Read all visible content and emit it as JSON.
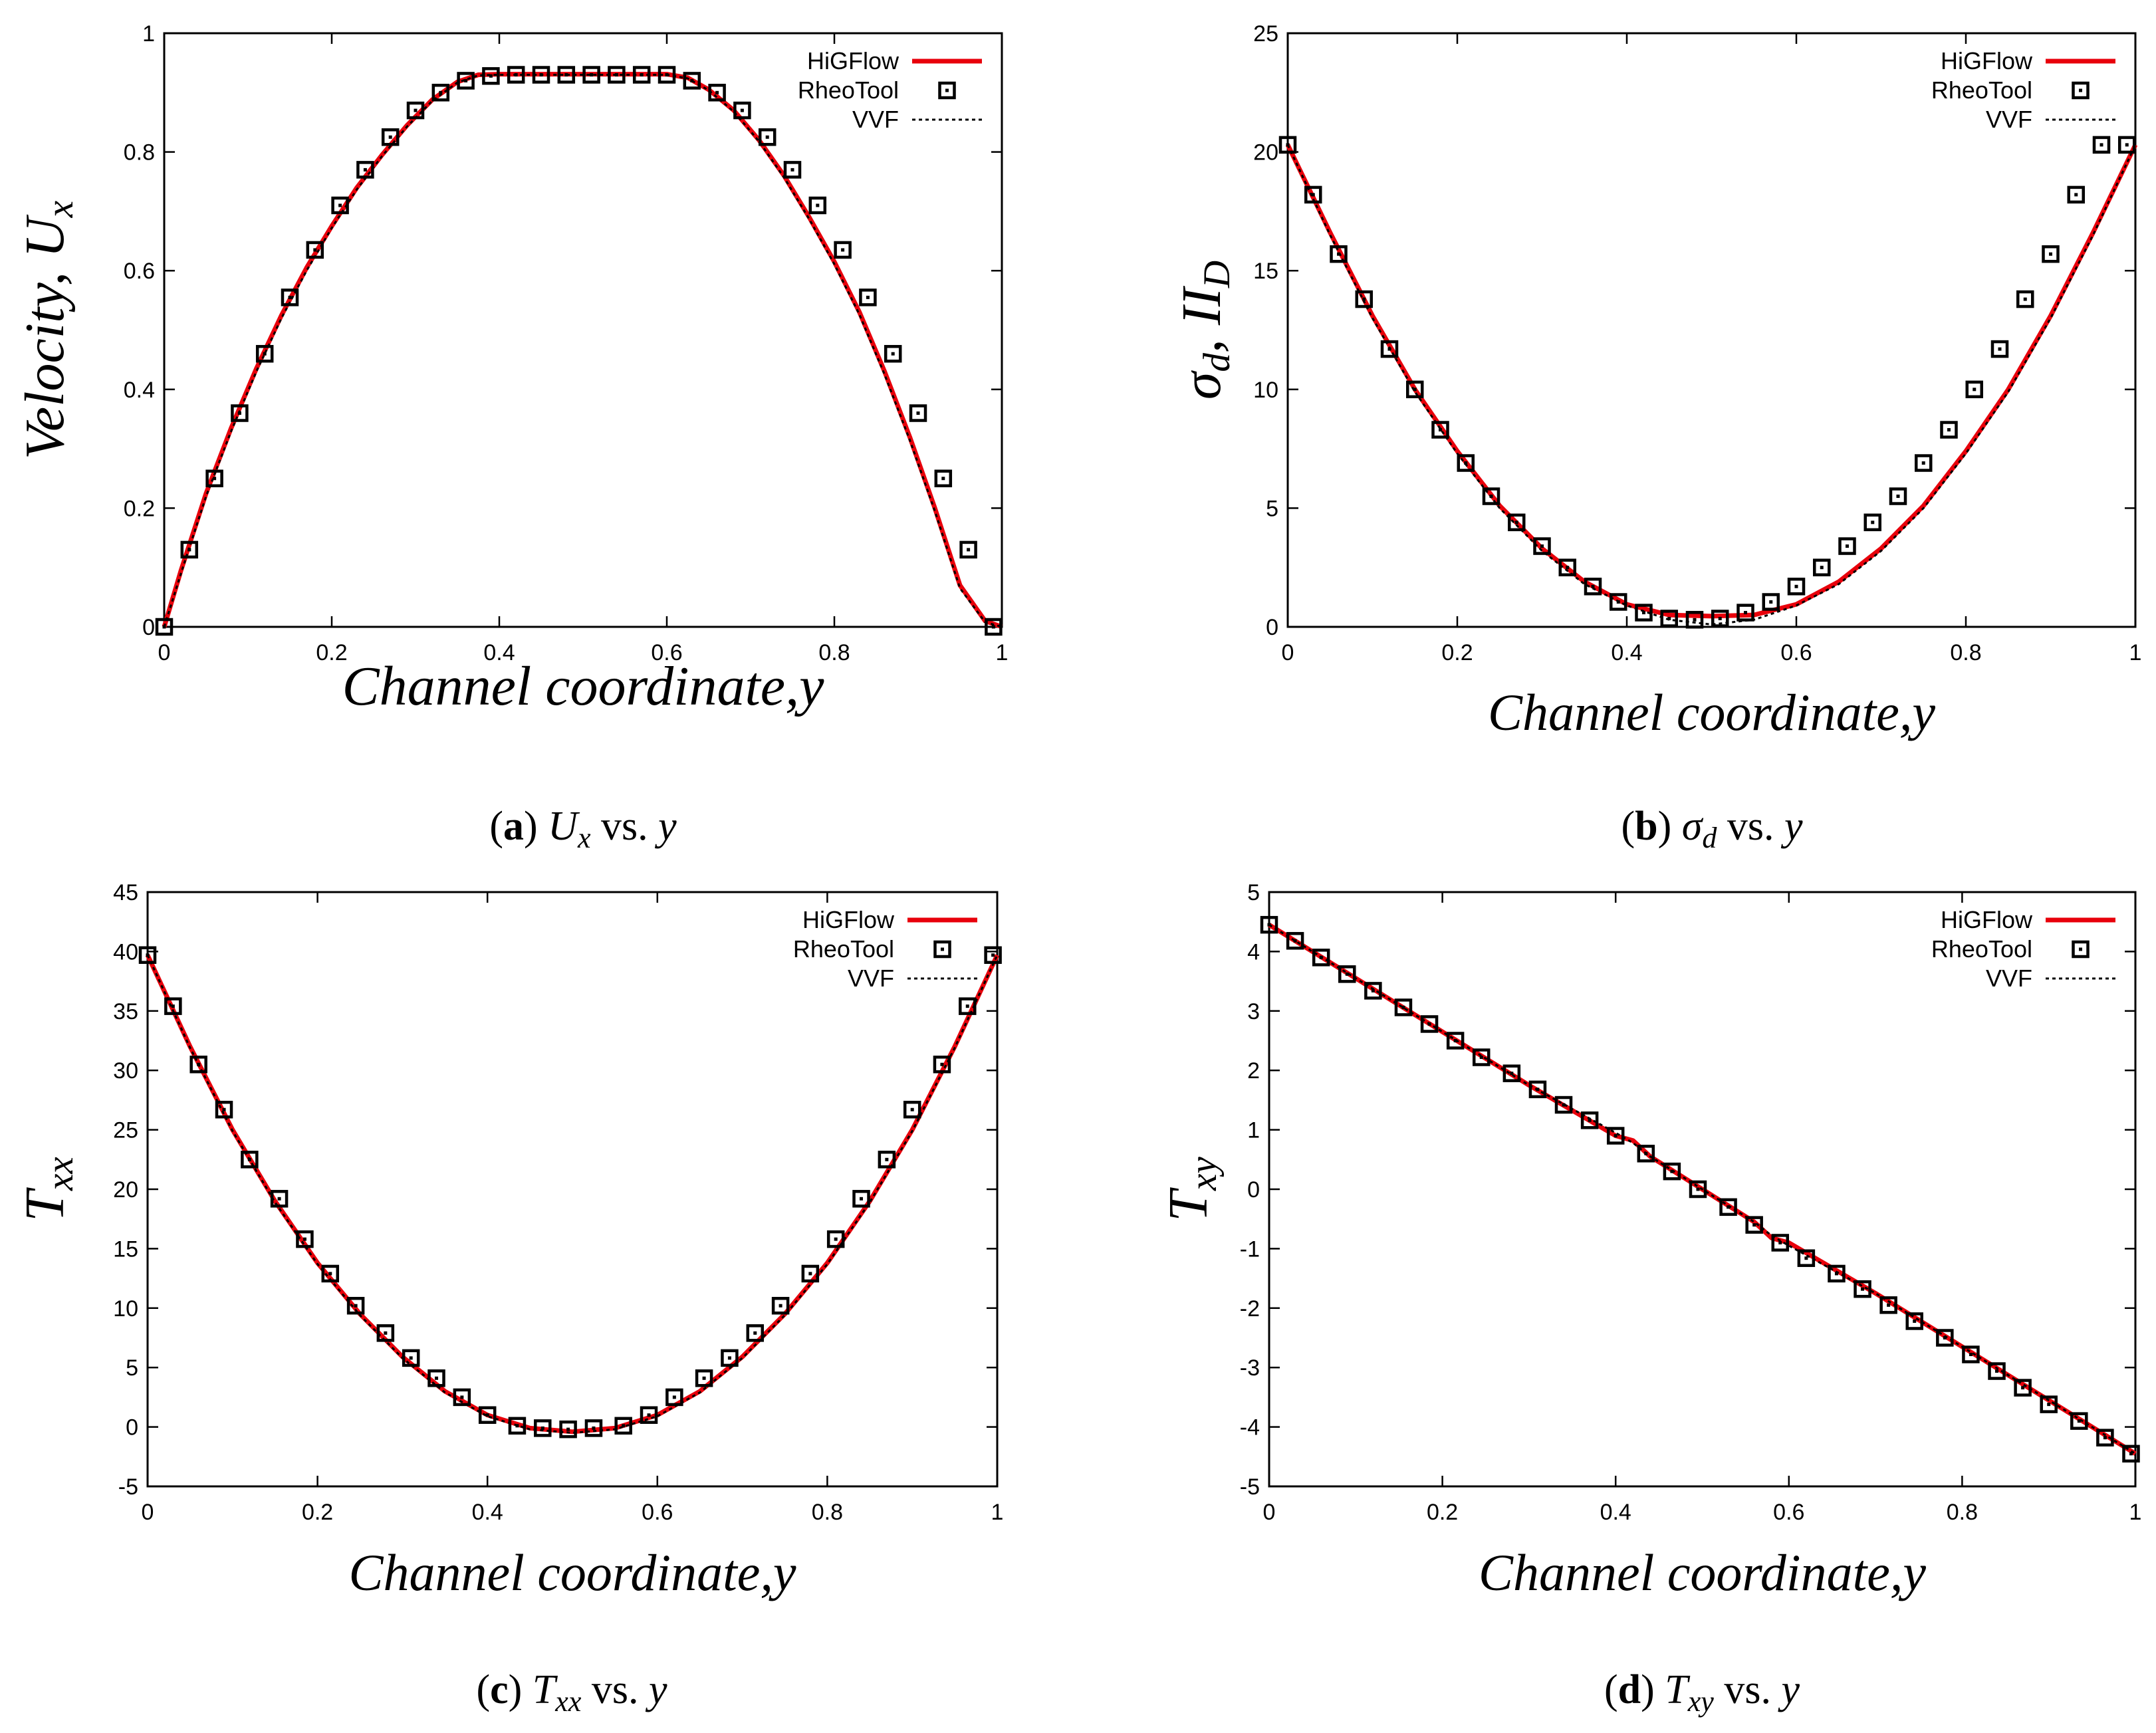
{
  "colors": {
    "higflow": "#e8000b",
    "rheotool": "#000000",
    "vvf": "#000000",
    "axis": "#000000"
  },
  "chart_data": [
    {
      "id": "a",
      "type": "line",
      "xlabel": "Channel coordinate,y",
      "ylabel": "Velocity, U",
      "ylabel_sub": "x",
      "xlim": [
        0,
        1
      ],
      "ylim": [
        0,
        1
      ],
      "xticks": [
        "0",
        "0.2",
        "0.4",
        "0.6",
        "0.8",
        "1"
      ],
      "xtick_values": [
        0,
        0.2,
        0.4,
        0.6,
        0.8,
        1
      ],
      "yticks": [
        "0",
        "0.2",
        "0.4",
        "0.6",
        "0.8",
        "1"
      ],
      "ytick_values": [
        0,
        0.2,
        0.4,
        0.6,
        0.8,
        1
      ],
      "legend": {
        "position": "top-right",
        "entries": [
          "HiGFlow",
          "RheoTool",
          "VVF"
        ]
      },
      "caption": {
        "label": "(a)",
        "var": "U",
        "var_sub": "x",
        "vs": "vs.",
        "y": "y"
      },
      "series": [
        {
          "name": "HiGFlow",
          "style": "solid-red",
          "x": [
            0,
            0.02,
            0.05,
            0.08,
            0.11,
            0.14,
            0.17,
            0.2,
            0.23,
            0.26,
            0.29,
            0.32,
            0.35,
            0.375,
            0.4,
            0.45,
            0.5,
            0.55,
            0.6,
            0.625,
            0.65,
            0.68,
            0.71,
            0.74,
            0.77,
            0.8,
            0.83,
            0.86,
            0.89,
            0.92,
            0.95,
            0.98,
            1
          ],
          "y": [
            0,
            0.095,
            0.225,
            0.335,
            0.435,
            0.525,
            0.605,
            0.675,
            0.74,
            0.795,
            0.845,
            0.888,
            0.918,
            0.93,
            0.931,
            0.931,
            0.931,
            0.931,
            0.931,
            0.925,
            0.905,
            0.87,
            0.82,
            0.76,
            0.69,
            0.615,
            0.53,
            0.43,
            0.32,
            0.2,
            0.07,
            0.01,
            0
          ]
        },
        {
          "name": "RheoTool",
          "style": "open-square",
          "x": [
            0,
            0.03,
            0.06,
            0.09,
            0.12,
            0.15,
            0.18,
            0.21,
            0.24,
            0.27,
            0.3,
            0.33,
            0.36,
            0.39,
            0.42,
            0.45,
            0.48,
            0.51,
            0.54,
            0.57,
            0.6,
            0.63,
            0.66,
            0.69,
            0.72,
            0.75,
            0.78,
            0.81,
            0.84,
            0.87,
            0.9,
            0.93,
            0.96,
            0.99
          ],
          "y": [
            0,
            0.13,
            0.25,
            0.36,
            0.46,
            0.555,
            0.635,
            0.71,
            0.77,
            0.825,
            0.87,
            0.9,
            0.92,
            0.928,
            0.93,
            0.93,
            0.93,
            0.93,
            0.93,
            0.93,
            0.93,
            0.92,
            0.9,
            0.87,
            0.825,
            0.77,
            0.71,
            0.635,
            0.555,
            0.46,
            0.36,
            0.25,
            0.13,
            0
          ]
        },
        {
          "name": "VVF",
          "style": "dotted-black",
          "x": [
            0,
            0.02,
            0.05,
            0.08,
            0.11,
            0.14,
            0.17,
            0.2,
            0.23,
            0.26,
            0.29,
            0.32,
            0.35,
            0.375,
            0.4,
            0.5,
            0.6,
            0.625,
            0.65,
            0.68,
            0.71,
            0.74,
            0.77,
            0.8,
            0.83,
            0.86,
            0.89,
            0.92,
            0.95,
            0.98,
            1
          ],
          "y": [
            0,
            0.09,
            0.22,
            0.33,
            0.43,
            0.52,
            0.6,
            0.672,
            0.737,
            0.793,
            0.843,
            0.886,
            0.917,
            0.929,
            0.93,
            0.93,
            0.93,
            0.924,
            0.904,
            0.868,
            0.818,
            0.757,
            0.687,
            0.611,
            0.526,
            0.425,
            0.315,
            0.195,
            0.065,
            0.008,
            0
          ]
        }
      ]
    },
    {
      "id": "b",
      "type": "line",
      "xlabel": "Channel coordinate,y",
      "ylabel": "σ",
      "ylabel_sub": "d",
      "ylabel_extra": ", II",
      "ylabel_extra_sub": "D",
      "xlim": [
        0,
        1
      ],
      "ylim": [
        0,
        25
      ],
      "xticks": [
        "0",
        "0.2",
        "0.4",
        "0.6",
        "0.8",
        "1"
      ],
      "xtick_values": [
        0,
        0.2,
        0.4,
        0.6,
        0.8,
        1
      ],
      "yticks": [
        "0",
        "5",
        "10",
        "15",
        "20",
        "25"
      ],
      "ytick_values": [
        0,
        5,
        10,
        15,
        20,
        25
      ],
      "legend": {
        "position": "top-right",
        "entries": [
          "HiGFlow",
          "RheoTool",
          "VVF"
        ]
      },
      "caption": {
        "label": "(b)",
        "var": "σ",
        "var_sub": "d",
        "vs": "vs.",
        "y": "y"
      },
      "series": [
        {
          "name": "HiGFlow",
          "style": "solid-red",
          "x": [
            0,
            0.05,
            0.1,
            0.15,
            0.2,
            0.25,
            0.3,
            0.35,
            0.4,
            0.45,
            0.5,
            0.55,
            0.6,
            0.65,
            0.7,
            0.75,
            0.8,
            0.85,
            0.9,
            0.95,
            1
          ],
          "y": [
            20.3,
            16.6,
            13.1,
            10.0,
            7.4,
            5.1,
            3.3,
            1.9,
            0.95,
            0.5,
            0.45,
            0.5,
            0.95,
            1.9,
            3.3,
            5.1,
            7.4,
            10.0,
            13.1,
            16.6,
            20.3
          ]
        },
        {
          "name": "RheoTool",
          "style": "open-square",
          "x": [
            0,
            0.03,
            0.06,
            0.09,
            0.12,
            0.15,
            0.18,
            0.21,
            0.24,
            0.27,
            0.3,
            0.33,
            0.36,
            0.39,
            0.42,
            0.45,
            0.48,
            0.51,
            0.54,
            0.57,
            0.6,
            0.63,
            0.66,
            0.69,
            0.72,
            0.75,
            0.78,
            0.81,
            0.84,
            0.87,
            0.9,
            0.93,
            0.96,
            0.99
          ],
          "y": [
            20.3,
            18.2,
            15.7,
            13.8,
            11.7,
            10.0,
            8.3,
            6.9,
            5.5,
            4.4,
            3.4,
            2.5,
            1.7,
            1.05,
            0.6,
            0.35,
            0.3,
            0.35,
            0.6,
            1.05,
            1.7,
            2.5,
            3.4,
            4.4,
            5.5,
            6.9,
            8.3,
            10.0,
            11.7,
            13.8,
            15.7,
            18.2,
            20.3,
            20.3
          ]
        },
        {
          "name": "VVF",
          "style": "dotted-black",
          "x": [
            0,
            0.05,
            0.1,
            0.15,
            0.2,
            0.25,
            0.3,
            0.35,
            0.4,
            0.45,
            0.5,
            0.55,
            0.6,
            0.65,
            0.7,
            0.75,
            0.8,
            0.85,
            0.9,
            0.95,
            1
          ],
          "y": [
            20.3,
            16.5,
            13.0,
            9.9,
            7.3,
            5.0,
            3.2,
            1.8,
            0.9,
            0.3,
            0.1,
            0.3,
            0.9,
            1.8,
            3.2,
            5.0,
            7.3,
            9.9,
            13.0,
            16.5,
            20.3
          ]
        }
      ]
    },
    {
      "id": "c",
      "type": "line",
      "xlabel": "Channel coordinate,y",
      "ylabel": "T",
      "ylabel_sub": "xx",
      "xlim": [
        0,
        1
      ],
      "ylim": [
        -5,
        45
      ],
      "xticks": [
        "0",
        "0.2",
        "0.4",
        "0.6",
        "0.8",
        "1"
      ],
      "xtick_values": [
        0,
        0.2,
        0.4,
        0.6,
        0.8,
        1
      ],
      "yticks": [
        "-5",
        "0",
        "5",
        "10",
        "15",
        "20",
        "25",
        "30",
        "35",
        "40",
        "45"
      ],
      "ytick_values": [
        -5,
        0,
        5,
        10,
        15,
        20,
        25,
        30,
        35,
        40,
        45
      ],
      "legend": {
        "position": "top-right",
        "entries": [
          "HiGFlow",
          "RheoTool",
          "VVF"
        ]
      },
      "caption": {
        "label": "(c)",
        "var": "T",
        "var_sub": "xx",
        "vs": "vs.",
        "y": "y"
      },
      "series": [
        {
          "name": "HiGFlow",
          "style": "solid-red",
          "x": [
            0,
            0.05,
            0.1,
            0.15,
            0.2,
            0.25,
            0.3,
            0.35,
            0.4,
            0.45,
            0.5,
            0.55,
            0.6,
            0.65,
            0.7,
            0.75,
            0.8,
            0.85,
            0.9,
            0.95,
            1
          ],
          "y": [
            39.7,
            32.0,
            25.0,
            19.0,
            13.8,
            9.5,
            5.9,
            3.0,
            1.0,
            -0.1,
            -0.4,
            -0.1,
            1.0,
            3.0,
            5.9,
            9.5,
            13.8,
            19.0,
            25.0,
            32.0,
            39.7
          ]
        },
        {
          "name": "RheoTool",
          "style": "open-square",
          "x": [
            0,
            0.03,
            0.06,
            0.09,
            0.12,
            0.155,
            0.185,
            0.215,
            0.245,
            0.28,
            0.31,
            0.34,
            0.37,
            0.4,
            0.435,
            0.465,
            0.495,
            0.525,
            0.56,
            0.59,
            0.62,
            0.655,
            0.685,
            0.715,
            0.745,
            0.78,
            0.81,
            0.84,
            0.87,
            0.9,
            0.935,
            0.965,
            0.995
          ],
          "y": [
            39.7,
            35.4,
            30.5,
            26.7,
            22.5,
            19.2,
            15.8,
            12.9,
            10.2,
            7.9,
            5.8,
            4.1,
            2.5,
            1.0,
            0.1,
            -0.1,
            -0.2,
            -0.1,
            0.1,
            1.0,
            2.5,
            4.1,
            5.8,
            7.9,
            10.2,
            12.9,
            15.8,
            19.2,
            22.5,
            26.7,
            30.5,
            35.4,
            39.7
          ]
        },
        {
          "name": "VVF",
          "style": "dotted-black",
          "x": [
            0,
            0.05,
            0.1,
            0.15,
            0.2,
            0.25,
            0.3,
            0.35,
            0.4,
            0.45,
            0.5,
            0.55,
            0.6,
            0.65,
            0.7,
            0.75,
            0.8,
            0.85,
            0.9,
            0.95,
            1
          ],
          "y": [
            39.7,
            31.9,
            24.9,
            18.9,
            13.7,
            9.4,
            5.8,
            2.9,
            0.9,
            -0.2,
            -0.5,
            -0.2,
            0.9,
            2.9,
            5.8,
            9.4,
            13.7,
            18.9,
            24.9,
            31.9,
            39.7
          ]
        }
      ]
    },
    {
      "id": "d",
      "type": "line",
      "xlabel": "Channel coordinate,y",
      "ylabel": "T",
      "ylabel_sub": "xy",
      "xlim": [
        0,
        1
      ],
      "ylim": [
        -5,
        5
      ],
      "xticks": [
        "0",
        "0.2",
        "0.4",
        "0.6",
        "0.8",
        "1"
      ],
      "xtick_values": [
        0,
        0.2,
        0.4,
        0.6,
        0.8,
        1
      ],
      "yticks": [
        "-5",
        "-4",
        "-3",
        "-2",
        "-1",
        "0",
        "1",
        "2",
        "3",
        "4",
        "5"
      ],
      "ytick_values": [
        -5,
        -4,
        -3,
        -2,
        -1,
        0,
        1,
        2,
        3,
        4,
        5
      ],
      "legend": {
        "position": "top-right",
        "entries": [
          "HiGFlow",
          "RheoTool",
          "VVF"
        ]
      },
      "caption": {
        "label": "(d)",
        "var": "T",
        "var_sub": "xy",
        "vs": "vs.",
        "y": "y"
      },
      "series": [
        {
          "name": "HiGFlow",
          "style": "solid-red",
          "x": [
            0,
            0.1,
            0.2,
            0.3,
            0.4,
            0.42,
            0.44,
            0.5,
            0.56,
            0.58,
            0.6,
            0.7,
            0.8,
            0.9,
            1
          ],
          "y": [
            4.45,
            3.55,
            2.65,
            1.75,
            0.9,
            0.82,
            0.55,
            0.0,
            -0.55,
            -0.82,
            -0.9,
            -1.75,
            -2.65,
            -3.55,
            -4.45
          ]
        },
        {
          "name": "RheoTool",
          "style": "open-square",
          "x": [
            0,
            0.03,
            0.06,
            0.09,
            0.12,
            0.155,
            0.185,
            0.215,
            0.245,
            0.28,
            0.31,
            0.34,
            0.37,
            0.4,
            0.435,
            0.465,
            0.495,
            0.53,
            0.56,
            0.59,
            0.62,
            0.655,
            0.685,
            0.715,
            0.745,
            0.78,
            0.81,
            0.84,
            0.87,
            0.9,
            0.935,
            0.965,
            0.995
          ],
          "y": [
            4.45,
            4.18,
            3.9,
            3.62,
            3.34,
            3.06,
            2.78,
            2.5,
            2.22,
            1.95,
            1.68,
            1.42,
            1.16,
            0.9,
            0.6,
            0.3,
            0.0,
            -0.3,
            -0.6,
            -0.9,
            -1.16,
            -1.42,
            -1.68,
            -1.95,
            -2.22,
            -2.5,
            -2.78,
            -3.06,
            -3.34,
            -3.62,
            -3.9,
            -4.18,
            -4.45
          ]
        },
        {
          "name": "VVF",
          "style": "dotted-black",
          "x": [
            0,
            0.1,
            0.2,
            0.3,
            0.4,
            0.42,
            0.44,
            0.5,
            0.56,
            0.58,
            0.6,
            0.7,
            0.8,
            0.9,
            1
          ],
          "y": [
            4.45,
            3.55,
            2.65,
            1.75,
            0.95,
            0.78,
            0.55,
            0.0,
            -0.55,
            -0.78,
            -0.95,
            -1.75,
            -2.65,
            -3.55,
            -4.45
          ]
        }
      ]
    }
  ]
}
